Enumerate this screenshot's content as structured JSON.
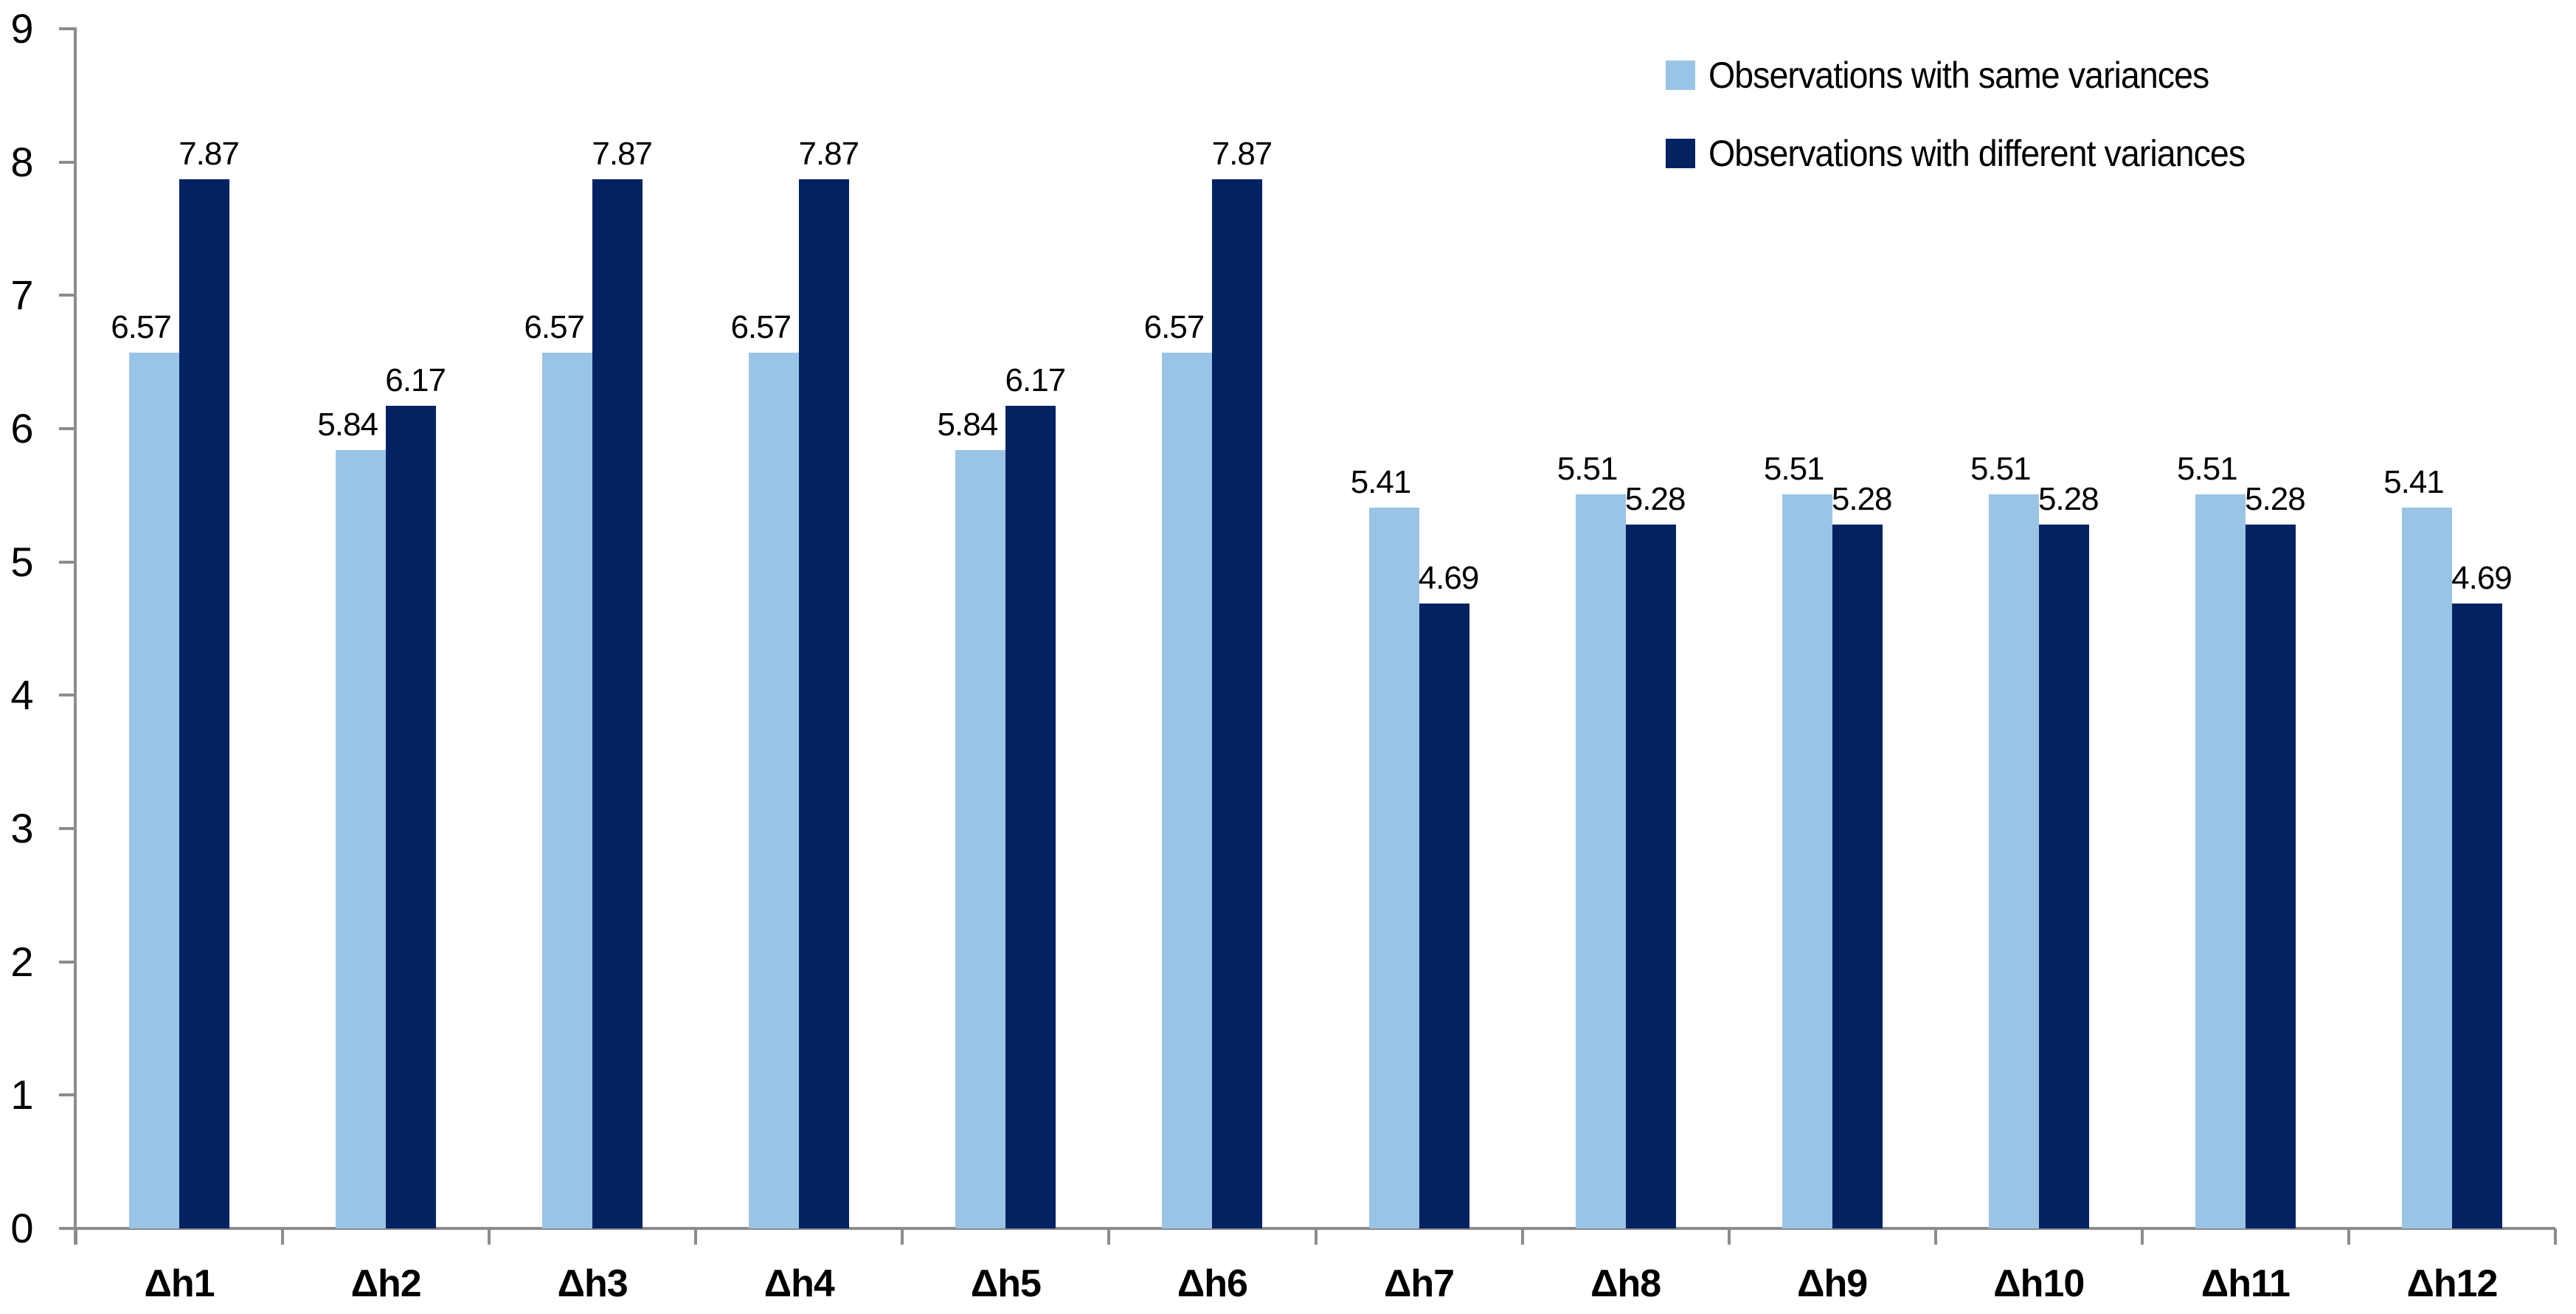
{
  "chart_data": {
    "type": "bar",
    "title": "",
    "xlabel": "",
    "ylabel": "",
    "categories": [
      "Δh1",
      "Δh2",
      "Δh3",
      "Δh4",
      "Δh5",
      "Δh6",
      "Δh7",
      "Δh8",
      "Δh9",
      "Δh10",
      "Δh11",
      "Δh12"
    ],
    "series": [
      {
        "name": "Observations with same variances",
        "color": "#9AC4E6",
        "values": [
          6.57,
          5.84,
          6.57,
          6.57,
          5.84,
          6.57,
          5.41,
          5.51,
          5.51,
          5.51,
          5.51,
          5.41
        ]
      },
      {
        "name": "Observations with different variances",
        "color": "#022262",
        "values": [
          7.87,
          6.17,
          7.87,
          7.87,
          6.17,
          7.87,
          4.69,
          5.28,
          5.28,
          5.28,
          5.28,
          4.69
        ]
      }
    ],
    "ylim": [
      0,
      9
    ],
    "yticks": [
      0,
      1,
      2,
      3,
      4,
      5,
      6,
      7,
      8,
      9
    ],
    "grid": false,
    "legend_position": "top-right",
    "data_labels": "outside-end, two decimals",
    "axis_color": "#8C8C8C",
    "text_color": "#000000",
    "background_color": "#FFFFFF"
  }
}
